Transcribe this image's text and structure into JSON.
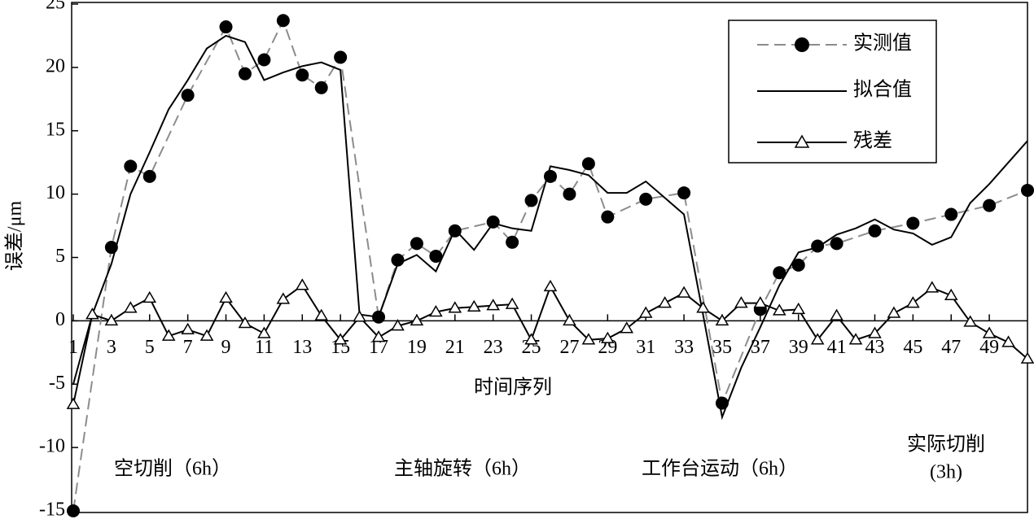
{
  "chart_data": {
    "type": "line",
    "y_label": "误差/μm",
    "x_label": "时间序列",
    "annotations": [
      "空切削（6h）",
      "主轴旋转（6h）",
      "工作台运动（6h）",
      "实际切削",
      "(3h)"
    ],
    "xlim": [
      1,
      51
    ],
    "xticks": [
      1,
      3,
      5,
      7,
      9,
      11,
      13,
      15,
      17,
      19,
      21,
      23,
      25,
      27,
      29,
      31,
      33,
      35,
      37,
      39,
      41,
      43,
      45,
      47,
      49
    ],
    "ylim": [
      -15,
      25
    ],
    "yticks": [
      -15,
      -10,
      -5,
      0,
      5,
      10,
      15,
      20,
      25
    ],
    "series": [
      {
        "name": "实测值",
        "color": "#8c8c8c",
        "dashed": true,
        "marker": "circle",
        "x": [
          1,
          3,
          4,
          5,
          7,
          9,
          10,
          11,
          12,
          13,
          14,
          15,
          17,
          18,
          19,
          20,
          21,
          23,
          24,
          25,
          26,
          27,
          28,
          29,
          31,
          33,
          35,
          37,
          38,
          39,
          40,
          41,
          43,
          45,
          47,
          49,
          51
        ],
        "values": [
          -15,
          5.8,
          12.2,
          11.4,
          17.8,
          23.2,
          19.5,
          20.6,
          23.7,
          19.4,
          18.4,
          20.8,
          0.3,
          4.8,
          6.1,
          5.1,
          7.1,
          7.8,
          6.2,
          9.5,
          11.4,
          10.0,
          12.4,
          8.2,
          9.6,
          10.1,
          -6.5,
          0.9,
          3.8,
          4.4,
          5.9,
          6.1,
          7.1,
          7.7,
          8.4,
          9.1,
          10.3
        ]
      },
      {
        "name": "拟合值",
        "color": "#000000",
        "dashed": false,
        "marker": "none",
        "x": [
          1,
          2,
          3,
          4,
          5,
          6,
          7,
          8,
          9,
          10,
          11,
          12,
          13,
          14,
          15,
          16,
          17,
          18,
          19,
          20,
          21,
          22,
          23,
          24,
          25,
          26,
          27,
          28,
          29,
          30,
          31,
          32,
          33,
          34,
          35,
          36,
          37,
          38,
          39,
          40,
          41,
          42,
          43,
          44,
          45,
          46,
          47,
          48,
          49,
          50,
          51
        ],
        "values": [
          -5,
          0.5,
          4.5,
          10,
          13.3,
          16.7,
          19,
          21.5,
          22.5,
          22,
          19,
          19.6,
          20.1,
          20.4,
          19.8,
          0.5,
          0.3,
          4.5,
          5.2,
          3.9,
          7.2,
          5.6,
          7.7,
          7.3,
          7.1,
          12.2,
          11.9,
          11.5,
          10.1,
          10.1,
          11.0,
          9.7,
          8.4,
          0.5,
          -7.6,
          -3.7,
          -0.5,
          2.8,
          5.4,
          5.8,
          6.8,
          7.3,
          8.0,
          7.2,
          6.9,
          6.0,
          6.6,
          9.3,
          10.8,
          12.5,
          14.2
        ]
      },
      {
        "name": "残差",
        "color": "#000000",
        "dashed": false,
        "marker": "triangle",
        "x": [
          1,
          2,
          3,
          4,
          5,
          6,
          7,
          8,
          9,
          10,
          11,
          12,
          13,
          14,
          15,
          16,
          17,
          18,
          19,
          20,
          21,
          22,
          23,
          24,
          25,
          26,
          27,
          28,
          29,
          30,
          31,
          32,
          33,
          34,
          35,
          36,
          37,
          38,
          39,
          40,
          41,
          42,
          43,
          44,
          45,
          46,
          47,
          48,
          49,
          50,
          51
        ],
        "values": [
          -6.6,
          0.5,
          0,
          1.0,
          1.8,
          -1.2,
          -0.7,
          -1.2,
          1.8,
          -0.2,
          -1.0,
          1.7,
          2.8,
          0.4,
          -1.5,
          0.3,
          -1.3,
          -0.4,
          0,
          0.7,
          1.0,
          1.1,
          1.2,
          1.3,
          -1.5,
          2.7,
          0,
          -1.5,
          -1.4,
          -0.6,
          0.6,
          1.4,
          2.2,
          1.0,
          0,
          1.4,
          1.4,
          0.8,
          0.9,
          -1.5,
          0.4,
          -1.5,
          -1.0,
          0.6,
          1.4,
          2.6,
          2.0,
          -0.1,
          -1.0,
          -1.7,
          -3.0
        ]
      }
    ]
  }
}
